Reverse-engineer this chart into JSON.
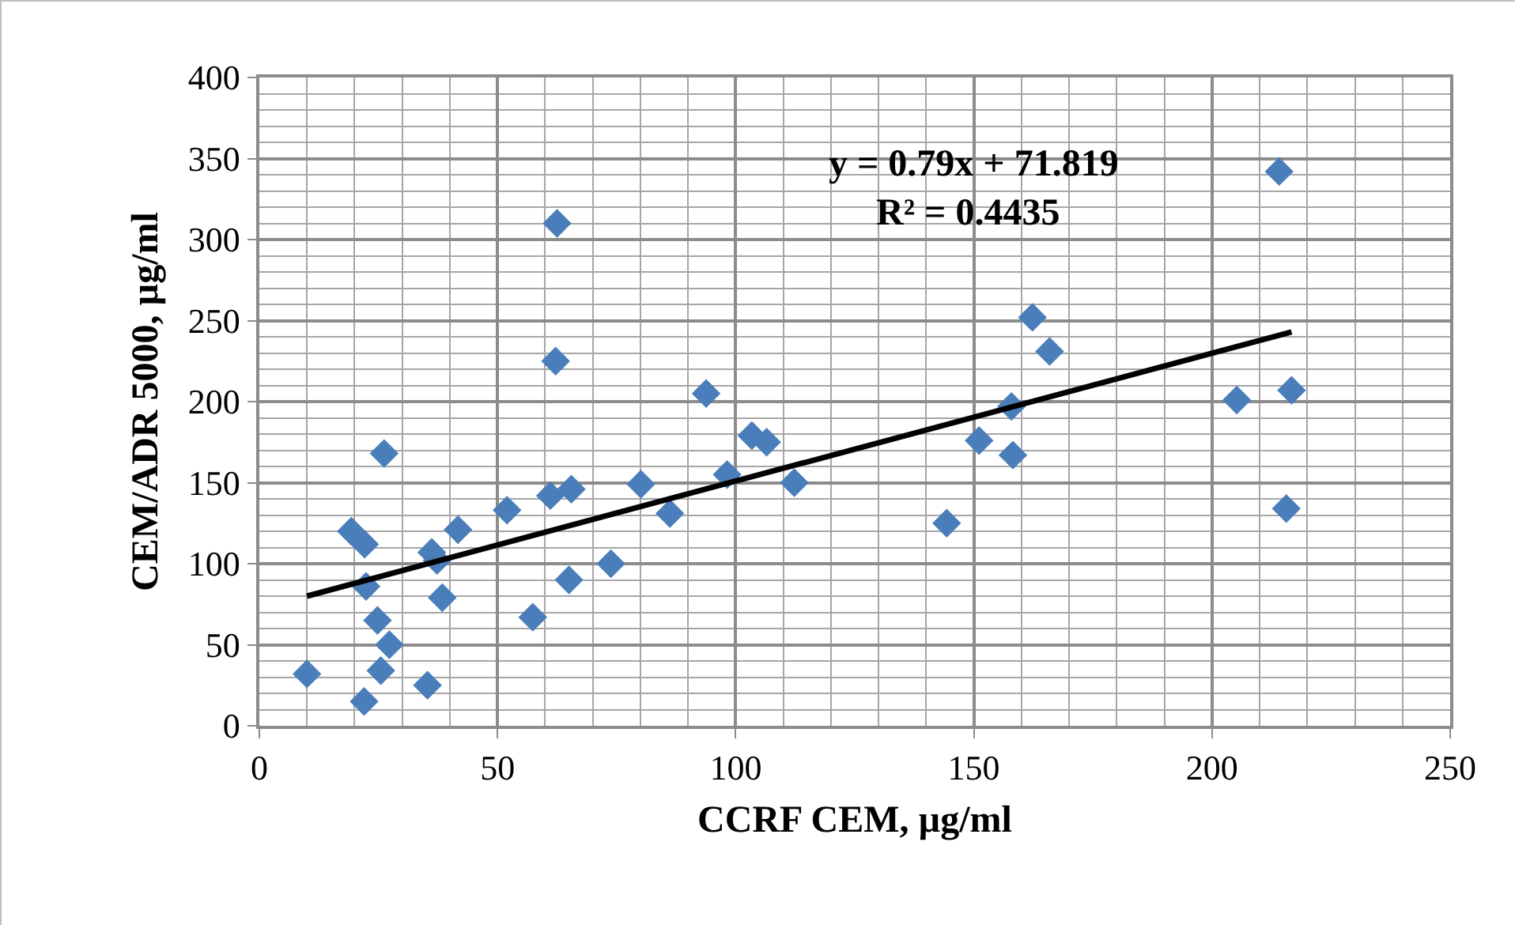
{
  "chart_data": {
    "type": "scatter",
    "xlabel": "CCRF CEM, µg/ml",
    "ylabel": "CEM/ADR 5000, µg/ml",
    "annotations": [
      "y = 0.79x + 71.819",
      "R² = 0.4435"
    ],
    "xlim": [
      0,
      250
    ],
    "xticks": [
      0,
      50,
      100,
      150,
      200,
      250
    ],
    "ylim": [
      0,
      400
    ],
    "yticks": [
      0,
      50,
      100,
      150,
      200,
      250,
      300,
      350,
      400
    ],
    "grid": true,
    "marker": "diamond",
    "series": [
      {
        "color": "#4a7ebb",
        "x": [
          10,
          22,
          19.3,
          22.1,
          22.4,
          24.8,
          25.5,
          27.3,
          26.2,
          35.3,
          36.2,
          37.3,
          38.4,
          41.7,
          52,
          57.4,
          61.1,
          65.5,
          65,
          62.5,
          62.2,
          73.8,
          80.1,
          86.2,
          93.8,
          98.2,
          103.4,
          106.5,
          112.3,
          144.3,
          151.1,
          158.2,
          157.9,
          162.3,
          165.9,
          205.2,
          214.1,
          216.7,
          215.6
        ],
        "values": [
          32,
          15,
          120,
          112,
          86,
          65,
          34,
          50,
          168,
          25,
          107,
          102,
          79,
          121,
          133,
          67,
          142,
          146,
          90,
          310,
          225,
          100,
          149,
          131,
          205,
          155,
          179,
          175,
          150,
          125,
          176,
          167,
          197,
          252,
          231,
          201,
          342,
          207,
          134
        ]
      },
      {
        "type": "line",
        "color": "#000000",
        "marker": "none",
        "line_style": "solid",
        "x": [
          10,
          216.7
        ],
        "values": [
          80,
          243
        ]
      }
    ]
  }
}
